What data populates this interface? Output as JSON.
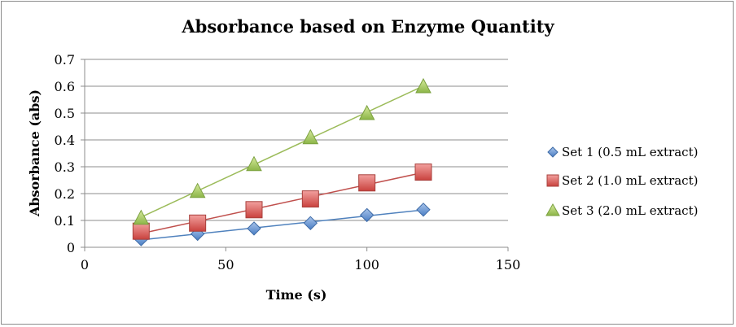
{
  "chart_data": {
    "type": "scatter",
    "title": "Absorbance based on Enzyme Quantity",
    "xlabel": "Time (s)",
    "ylabel": "Absorbance (abs)",
    "xlim": [
      0,
      150
    ],
    "ylim": [
      0,
      0.7
    ],
    "x_ticks": [
      "0",
      "50",
      "100",
      "150"
    ],
    "y_ticks": [
      "0",
      "0.1",
      "0.2",
      "0.3",
      "0.4",
      "0.5",
      "0.6",
      "0.7"
    ],
    "grid": "horizontal",
    "legend_position": "right",
    "trendlines": true,
    "series": [
      {
        "name": "Set 1 (0.5 mL extract)",
        "marker": "diamond",
        "color": "#4f81bd",
        "points": [
          [
            20,
            0.03
          ],
          [
            40,
            0.05
          ],
          [
            60,
            0.07
          ],
          [
            80,
            0.09
          ],
          [
            100,
            0.12
          ],
          [
            120,
            0.14
          ]
        ]
      },
      {
        "name": "Set 2 (1.0 mL extract)",
        "marker": "square",
        "color": "#c0504d",
        "points": [
          [
            20,
            0.06
          ],
          [
            40,
            0.09
          ],
          [
            60,
            0.14
          ],
          [
            80,
            0.18
          ],
          [
            100,
            0.24
          ],
          [
            120,
            0.28
          ]
        ]
      },
      {
        "name": "Set 3 (2.0 mL extract)",
        "marker": "triangle",
        "color": "#9bbb59",
        "points": [
          [
            20,
            0.11
          ],
          [
            40,
            0.21
          ],
          [
            60,
            0.31
          ],
          [
            80,
            0.41
          ],
          [
            100,
            0.5
          ],
          [
            120,
            0.6
          ]
        ]
      }
    ]
  }
}
